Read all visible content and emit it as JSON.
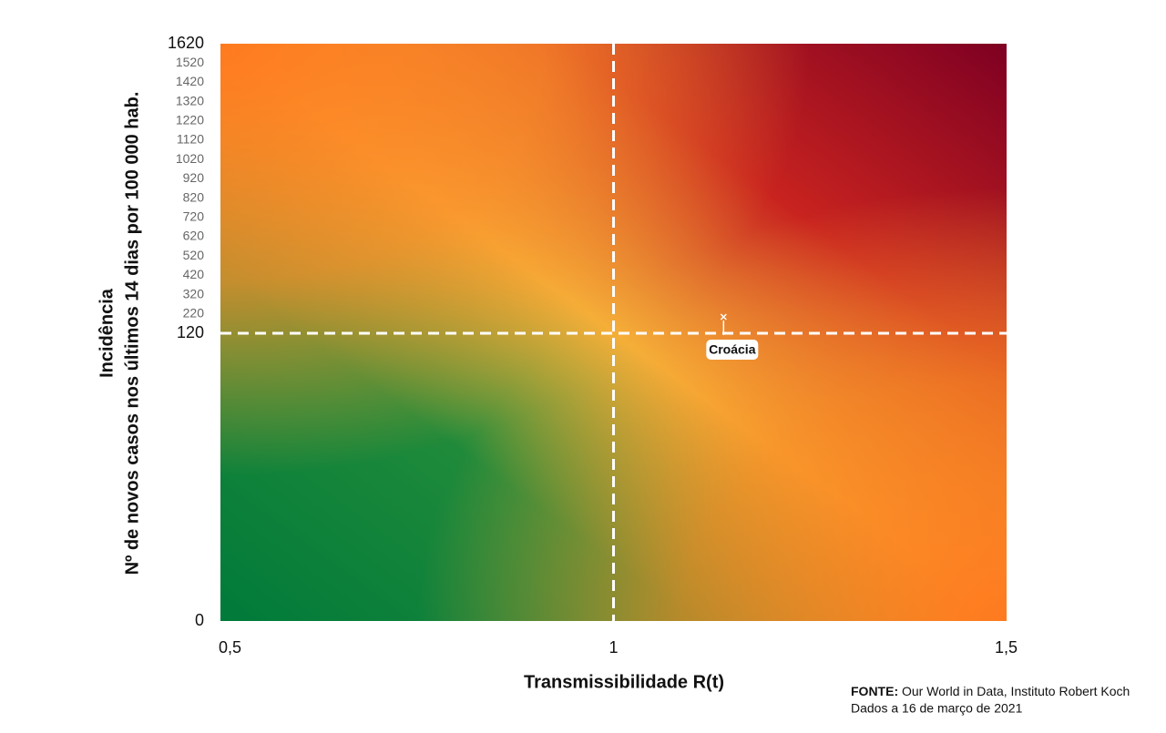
{
  "chart_data": {
    "type": "scatter",
    "x_label": "Transmissibilidade R(t)",
    "y_label": [
      "Incidência",
      "Nº de novos casos nos últimos 14 dias por 100 000 hab."
    ],
    "xlim": [
      0.5,
      1.5
    ],
    "xticks": [
      {
        "value": 0.5,
        "label": "0,5"
      },
      1,
      {
        "value": 1.5,
        "label": "1,5"
      }
    ],
    "ylim": [
      0,
      1620
    ],
    "yticks": [
      0,
      120,
      220,
      320,
      420,
      520,
      620,
      720,
      820,
      920,
      1020,
      1120,
      1220,
      1320,
      1420,
      1520,
      1620
    ],
    "x": [
      1.14
    ],
    "y": [
      205
    ],
    "labels": [
      "Croácia"
    ],
    "source_label": "FONTE:",
    "source": "Our World in Data, Instituto Robert Koch",
    "note": "Dados a 16 de março de 2021"
  }
}
